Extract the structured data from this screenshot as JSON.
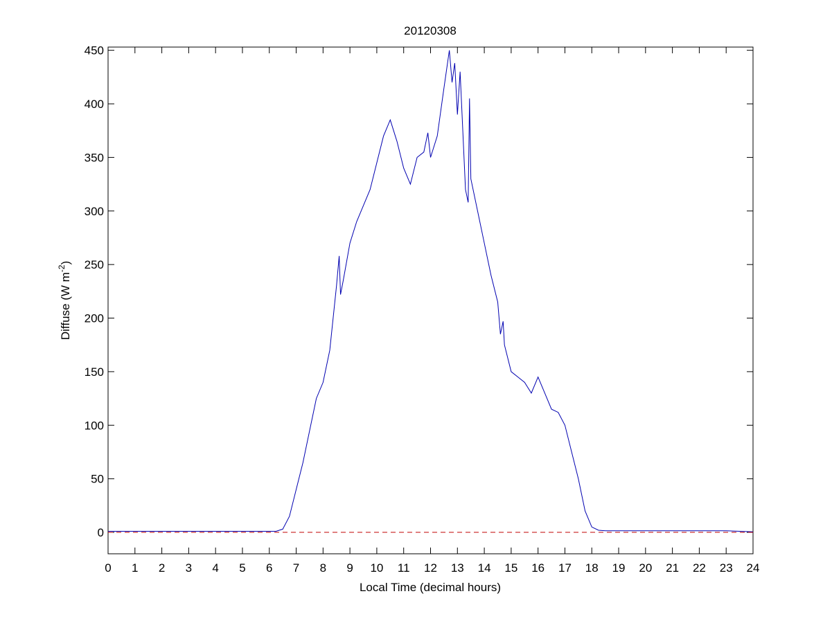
{
  "chart_data": {
    "type": "line",
    "title": "20120308",
    "xlabel": "Local Time (decimal hours)",
    "ylabel": [
      "Diffuse (W m",
      "-2",
      ")"
    ],
    "x": [
      0,
      1,
      2,
      3,
      4,
      5,
      6,
      6.25,
      6.5,
      6.75,
      7,
      7.25,
      7.5,
      7.75,
      8,
      8.25,
      8.5,
      8.6,
      8.65,
      8.75,
      9,
      9.25,
      9.5,
      9.75,
      10,
      10.25,
      10.5,
      10.75,
      11,
      11.25,
      11.5,
      11.75,
      11.9,
      12,
      12.25,
      12.5,
      12.7,
      12.8,
      12.9,
      13,
      13.1,
      13.3,
      13.4,
      13.45,
      13.5,
      13.75,
      14,
      14.25,
      14.5,
      14.6,
      14.7,
      14.75,
      15,
      15.25,
      15.5,
      15.75,
      16,
      16.25,
      16.5,
      16.75,
      17,
      17.25,
      17.5,
      17.75,
      18,
      18.25,
      18.5,
      19,
      20,
      21,
      22,
      23,
      24
    ],
    "series": [
      {
        "name": "Diffuse",
        "color": "#0000b0",
        "values": [
          1,
          1,
          1,
          1,
          1,
          1,
          1,
          1,
          3,
          15,
          40,
          65,
          95,
          125,
          140,
          170,
          230,
          258,
          222,
          235,
          270,
          290,
          305,
          320,
          345,
          370,
          385,
          365,
          340,
          325,
          350,
          355,
          373,
          350,
          370,
          415,
          450,
          420,
          438,
          390,
          430,
          320,
          308,
          405,
          330,
          300,
          270,
          240,
          215,
          185,
          197,
          175,
          150,
          145,
          140,
          130,
          145,
          130,
          115,
          112,
          100,
          75,
          50,
          20,
          5,
          2,
          1.5,
          1.5,
          1.5,
          1.5,
          1.5,
          1.5,
          0.5
        ]
      }
    ],
    "hline": {
      "value": 0,
      "color": "#c00000"
    },
    "xlim": [
      0,
      24
    ],
    "xticks": [
      0,
      1,
      2,
      3,
      4,
      5,
      6,
      7,
      8,
      9,
      10,
      11,
      12,
      13,
      14,
      15,
      16,
      17,
      18,
      19,
      20,
      21,
      22,
      23,
      24
    ],
    "ylim": [
      -20,
      453
    ],
    "yticks": [
      0,
      50,
      100,
      150,
      200,
      250,
      300,
      350,
      400,
      450
    ]
  }
}
